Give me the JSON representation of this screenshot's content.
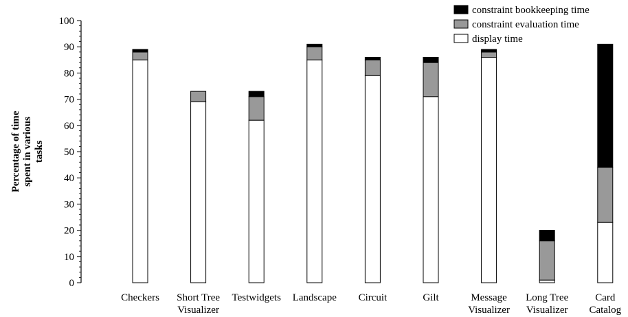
{
  "chart_data": {
    "type": "bar",
    "stacked": true,
    "categories": [
      [
        "Checkers"
      ],
      [
        "Short Tree",
        "Visualizer"
      ],
      [
        "Testwidgets"
      ],
      [
        "Landscape"
      ],
      [
        "Circuit"
      ],
      [
        "Gilt"
      ],
      [
        "Message",
        "Visualizer"
      ],
      [
        "Long Tree",
        "Visualizer"
      ],
      [
        "Card",
        "Catalog"
      ]
    ],
    "series": [
      {
        "name": "display time",
        "color": "#ffffff",
        "values": [
          85,
          69,
          62,
          85,
          79,
          71,
          86,
          1,
          23
        ]
      },
      {
        "name": "constraint evaluation time",
        "color": "#999999",
        "values": [
          3,
          4,
          9,
          5,
          6,
          13,
          2,
          15,
          21
        ]
      },
      {
        "name": "constraint bookkeeping time",
        "color": "#000000",
        "values": [
          1,
          0,
          2,
          1,
          1,
          2,
          1,
          4,
          47
        ]
      }
    ],
    "legend_order": [
      "constraint bookkeeping time",
      "constraint evaluation time",
      "display time"
    ],
    "legend_position": "top-right",
    "ylabel": [
      "Percentage of time",
      "spent in various",
      "tasks"
    ],
    "xlabel": "",
    "ylim": [
      0,
      100
    ],
    "yticks": [
      0,
      10,
      20,
      30,
      40,
      50,
      60,
      70,
      80,
      90,
      100
    ],
    "grid": false
  }
}
